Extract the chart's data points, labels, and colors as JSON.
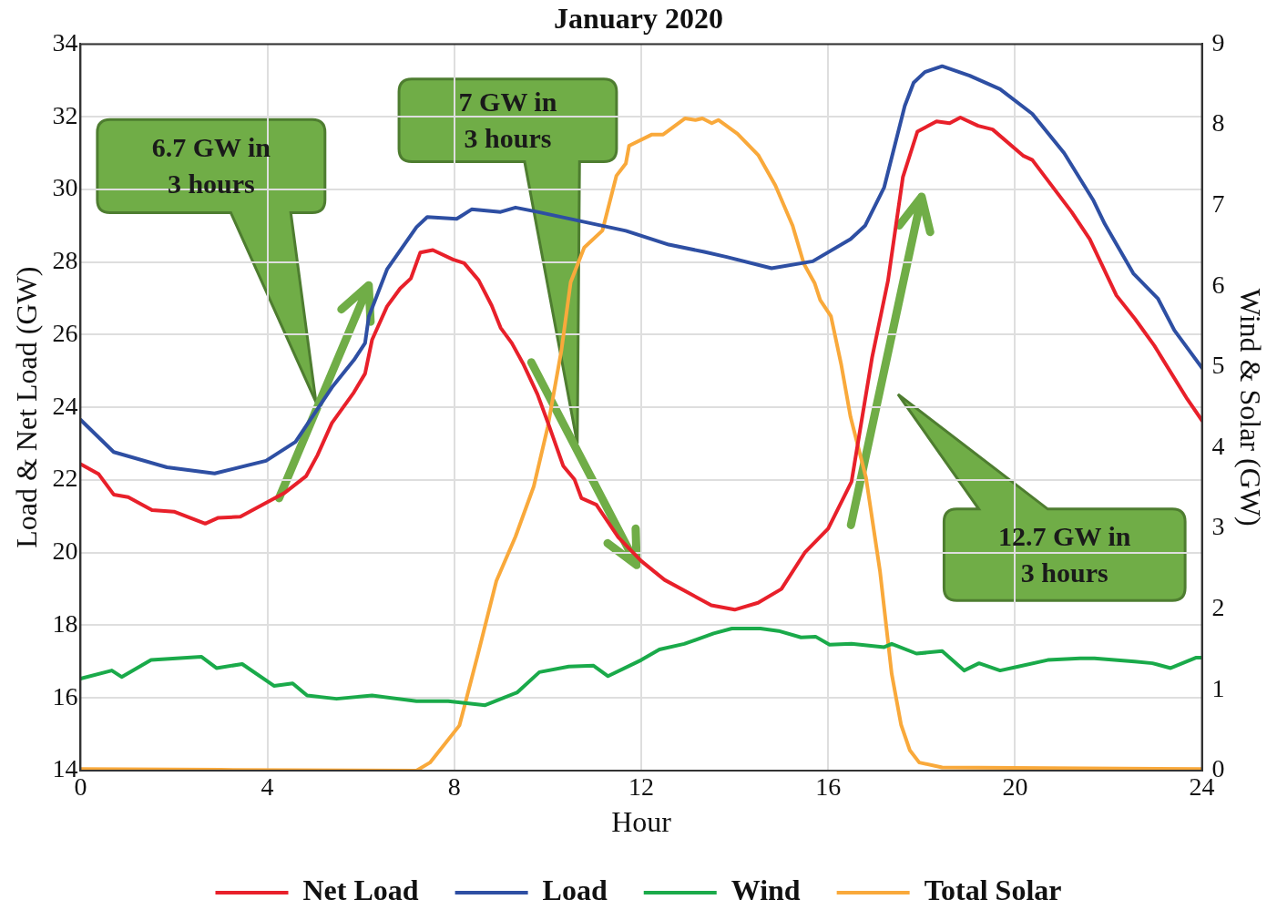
{
  "chart_data": {
    "type": "line",
    "title": "January 2020",
    "xlabel": "Hour",
    "ylabel": "Load & Net Load (GW)",
    "y2label": "Wind & Solar (GW)",
    "annotations": [
      "6.7 GW in\n3 hours",
      "7 GW in\n3 hours",
      "12.7 GW in\n3 hours"
    ],
    "xlim": [
      0,
      24
    ],
    "xticks": [
      0,
      4,
      8,
      12,
      16,
      20,
      24
    ],
    "ylim": [
      14,
      34
    ],
    "yticks": [
      14,
      16,
      18,
      20,
      22,
      24,
      26,
      28,
      30,
      32,
      34
    ],
    "y2lim": [
      0,
      9
    ],
    "y2ticks": [
      0,
      1,
      2,
      3,
      4,
      5,
      6,
      7,
      8,
      9
    ],
    "grid": true,
    "legend": "bottom",
    "marker": "none",
    "line_style": "solid",
    "series": [
      {
        "name": "Net Load",
        "color": "#e8202a",
        "x": [
          0,
          0.39,
          0.71,
          1.02,
          1.53,
          2.0,
          2.67,
          2.95,
          3.42,
          4.36,
          4.83,
          5.07,
          5.38,
          5.85,
          6.09,
          6.24,
          6.56,
          6.84,
          7.07,
          7.27,
          7.54,
          7.97,
          8.21,
          8.52,
          8.8,
          8.99,
          9.23,
          9.47,
          9.78,
          10.02,
          10.33,
          10.57,
          10.72,
          11.04,
          11.51,
          12,
          12.5,
          13,
          13.5,
          14,
          14.5,
          15,
          15.5,
          16,
          16.5,
          16.94,
          17.28,
          17.6,
          17.91,
          18.32,
          18.6,
          18.83,
          19.21,
          19.52,
          20.17,
          20.37,
          21.21,
          21.6,
          22.17,
          22.57,
          22.98,
          23.69,
          24
        ],
        "values": [
          22.44,
          22.16,
          21.6,
          21.53,
          21.17,
          21.13,
          20.8,
          20.96,
          20.99,
          21.64,
          22.11,
          22.68,
          23.57,
          24.41,
          24.93,
          25.86,
          26.78,
          27.27,
          27.55,
          28.26,
          28.33,
          28.07,
          27.97,
          27.5,
          26.8,
          26.19,
          25.77,
          25.21,
          24.36,
          23.52,
          22.39,
          22.02,
          21.5,
          21.32,
          20.42,
          19.77,
          19.25,
          18.9,
          18.55,
          18.43,
          18.62,
          19.0,
          20.0,
          20.66,
          21.95,
          25.37,
          27.48,
          30.34,
          31.59,
          31.87,
          31.82,
          31.98,
          31.75,
          31.65,
          30.93,
          30.81,
          29.38,
          28.63,
          27.08,
          26.43,
          25.7,
          24.22,
          23.64
        ]
      },
      {
        "name": "Load",
        "color": "#2e4fa3",
        "x": [
          0,
          0.71,
          1.85,
          2.87,
          3.97,
          4.6,
          5.38,
          5.85,
          6.09,
          6.17,
          6.56,
          7.19,
          7.42,
          8.05,
          8.37,
          8.99,
          9.31,
          9.78,
          11.67,
          12.59,
          13.35,
          13.83,
          14.79,
          15.67,
          16.48,
          16.79,
          17.2,
          17.64,
          17.83,
          18.07,
          18.44,
          19.03,
          19.68,
          20.37,
          21.05,
          21.68,
          21.92,
          22.53,
          23.06,
          23.41,
          24
        ],
        "values": [
          23.66,
          22.77,
          22.35,
          22.18,
          22.53,
          23.05,
          24.55,
          25.3,
          25.77,
          26.5,
          27.8,
          28.96,
          29.24,
          29.19,
          29.45,
          29.38,
          29.5,
          29.38,
          28.86,
          28.48,
          28.28,
          28.14,
          27.83,
          28.02,
          28.63,
          29.0,
          30.06,
          32.3,
          32.94,
          33.23,
          33.39,
          33.13,
          32.76,
          32.08,
          31.0,
          29.69,
          29.05,
          27.69,
          26.99,
          26.12,
          25.09
        ]
      },
      {
        "name": "Wind",
        "color": "#1aaa4a",
        "axis": "y2",
        "x": [
          0,
          0.67,
          0.88,
          1.51,
          2.59,
          2.91,
          3.46,
          4.14,
          4.54,
          4.85,
          5.48,
          6.24,
          7.19,
          7.87,
          8.66,
          9.35,
          9.82,
          10.45,
          10.98,
          11.29,
          12,
          12.39,
          12.92,
          13.55,
          13.94,
          14.55,
          14.94,
          15.42,
          15.73,
          16.03,
          16.5,
          17.2,
          17.36,
          17.89,
          18.44,
          18.91,
          19.23,
          19.68,
          20.07,
          20.7,
          21.39,
          21.7,
          22.56,
          22.94,
          23.33,
          23.88,
          24
        ],
        "values": [
          1.14,
          1.24,
          1.16,
          1.37,
          1.41,
          1.27,
          1.32,
          1.05,
          1.08,
          0.93,
          0.89,
          0.93,
          0.86,
          0.86,
          0.81,
          0.97,
          1.22,
          1.29,
          1.3,
          1.17,
          1.37,
          1.5,
          1.57,
          1.7,
          1.76,
          1.76,
          1.73,
          1.65,
          1.66,
          1.56,
          1.57,
          1.53,
          1.57,
          1.45,
          1.48,
          1.24,
          1.33,
          1.24,
          1.29,
          1.37,
          1.39,
          1.39,
          1.35,
          1.33,
          1.27,
          1.4,
          1.4
        ]
      },
      {
        "name": "Total Solar",
        "color": "#f9a93b",
        "axis": "y2",
        "x": [
          0,
          3,
          7.19,
          7.48,
          8.11,
          8.5,
          8.9,
          9.31,
          9.7,
          10.0,
          10.29,
          10.49,
          10.78,
          11.17,
          11.47,
          11.67,
          11.74,
          12.23,
          12.47,
          12.94,
          13.16,
          13.31,
          13.51,
          13.65,
          14.06,
          14.51,
          14.87,
          15.24,
          15.48,
          15.71,
          15.83,
          16.06,
          16.28,
          16.48,
          16.81,
          17.11,
          17.36,
          17.56,
          17.75,
          17.95,
          18.44,
          24
        ],
        "values": [
          0.02,
          0.01,
          0,
          0.1,
          0.56,
          1.43,
          2.35,
          2.9,
          3.52,
          4.26,
          5.2,
          6.05,
          6.48,
          6.69,
          7.37,
          7.52,
          7.74,
          7.88,
          7.88,
          8.08,
          8.06,
          8.08,
          8.02,
          8.06,
          7.89,
          7.62,
          7.25,
          6.75,
          6.28,
          6.04,
          5.83,
          5.63,
          5.03,
          4.38,
          3.63,
          2.47,
          1.2,
          0.57,
          0.25,
          0.1,
          0.04,
          0.02
        ]
      }
    ]
  }
}
